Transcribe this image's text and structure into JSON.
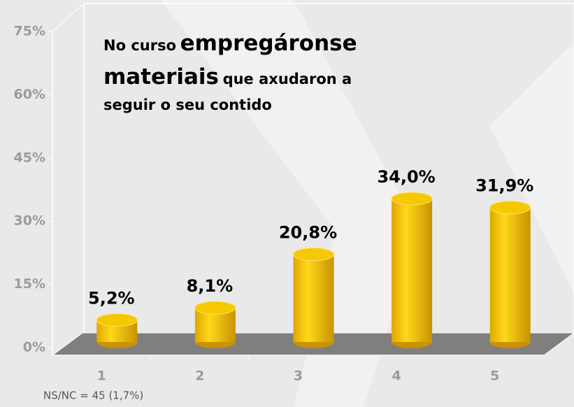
{
  "chart_data": {
    "type": "bar3d",
    "title": [
      "No curso",
      "empregáronse",
      "materiais",
      "que axudaron a",
      "seguir o seu contido"
    ],
    "categories": [
      "1",
      "2",
      "3",
      "4",
      "5"
    ],
    "values": [
      5.2,
      8.1,
      20.8,
      34.0,
      31.9
    ],
    "value_labels": [
      "5,2%",
      "8,1%",
      "20,8%",
      "34,0%",
      "31,9%"
    ],
    "color": "#f2c200",
    "ylim": [
      0,
      75
    ],
    "yticks": [
      {
        "value": 0,
        "label": "0%"
      },
      {
        "value": 15,
        "label": "15%"
      },
      {
        "value": 30,
        "label": "30%"
      },
      {
        "value": 45,
        "label": "45%"
      },
      {
        "value": 60,
        "label": "60%"
      },
      {
        "value": 75,
        "label": "75%"
      }
    ],
    "annotation": "NS/NC = 45 (1,7%)"
  }
}
